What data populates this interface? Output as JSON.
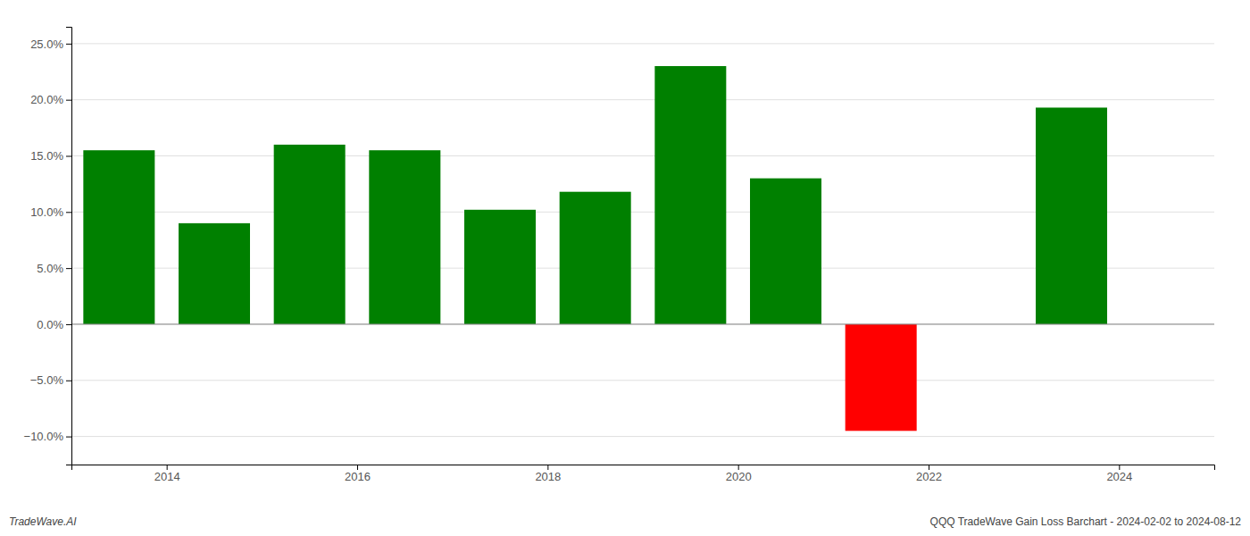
{
  "chart_data": {
    "type": "bar",
    "x": [
      2013.5,
      2014.5,
      2015.5,
      2016.5,
      2017.5,
      2018.5,
      2019.5,
      2020.5,
      2021.5,
      2023.5
    ],
    "values": [
      0.155,
      0.09,
      0.16,
      0.155,
      0.102,
      0.118,
      0.23,
      0.13,
      -0.095,
      0.193
    ],
    "colors": [
      "#008000",
      "#008000",
      "#008000",
      "#008000",
      "#008000",
      "#008000",
      "#008000",
      "#008000",
      "#ff0000",
      "#008000"
    ],
    "xlim": [
      2013.0,
      2025.0
    ],
    "xticks": [
      2014,
      2016,
      2018,
      2020,
      2022,
      2024
    ],
    "ylim": [
      -0.125,
      0.265
    ],
    "yticks": [
      {
        "value": -0.1,
        "label": "−10.0%"
      },
      {
        "value": -0.05,
        "label": "−5.0%"
      },
      {
        "value": 0.0,
        "label": "0.0%"
      },
      {
        "value": 0.05,
        "label": "5.0%"
      },
      {
        "value": 0.1,
        "label": "10.0%"
      },
      {
        "value": 0.15,
        "label": "15.0%"
      },
      {
        "value": 0.2,
        "label": "20.0%"
      },
      {
        "value": 0.25,
        "label": "25.0%"
      }
    ],
    "grid": true,
    "annotations": [
      "TradeWave.AI",
      "QQQ TradeWave Gain Loss Barchart - 2024-02-02 to 2024-08-12"
    ]
  }
}
